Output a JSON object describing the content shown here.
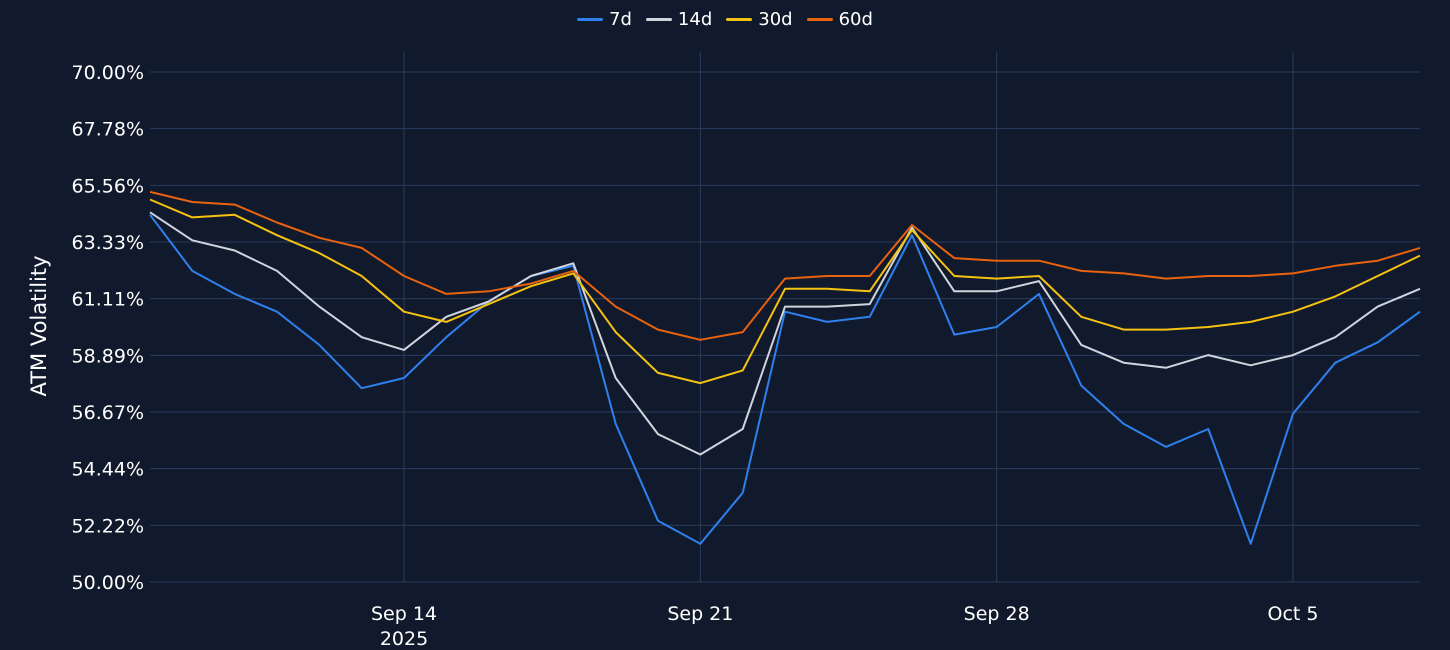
{
  "chart_data": {
    "type": "line",
    "ylabel": "ATM Volatility",
    "y_unit": "%",
    "ylim": [
      50.0,
      70.0
    ],
    "y_ticks": [
      "70.00%",
      "67.78%",
      "65.56%",
      "63.33%",
      "61.11%",
      "58.89%",
      "56.67%",
      "54.44%",
      "52.22%",
      "50.00%"
    ],
    "x_range": [
      "2025-09-08",
      "2025-10-08"
    ],
    "x_ticks": [
      {
        "date": "2025-09-14",
        "label": "Sep 14",
        "sublabel": "2025"
      },
      {
        "date": "2025-09-21",
        "label": "Sep 21",
        "sublabel": ""
      },
      {
        "date": "2025-09-28",
        "label": "Sep 28",
        "sublabel": ""
      },
      {
        "date": "2025-10-05",
        "label": "Oct 5",
        "sublabel": ""
      }
    ],
    "legend_position": "top-center",
    "grid": true,
    "series": [
      {
        "name": "7d",
        "color": "#2f80ed",
        "x": [
          "2025-09-08",
          "2025-09-09",
          "2025-09-10",
          "2025-09-11",
          "2025-09-12",
          "2025-09-13",
          "2025-09-14",
          "2025-09-15",
          "2025-09-16",
          "2025-09-17",
          "2025-09-18",
          "2025-09-19",
          "2025-09-20",
          "2025-09-21",
          "2025-09-22",
          "2025-09-23",
          "2025-09-24",
          "2025-09-25",
          "2025-09-26",
          "2025-09-27",
          "2025-09-28",
          "2025-09-29",
          "2025-09-30",
          "2025-10-01",
          "2025-10-02",
          "2025-10-03",
          "2025-10-04",
          "2025-10-05",
          "2025-10-06",
          "2025-10-07",
          "2025-10-08"
        ],
        "values": [
          64.4,
          62.2,
          61.3,
          60.6,
          59.3,
          57.6,
          58.0,
          59.6,
          61.0,
          62.0,
          62.4,
          56.2,
          52.4,
          51.5,
          53.5,
          60.6,
          60.2,
          60.4,
          63.6,
          59.7,
          60.0,
          61.3,
          57.7,
          56.2,
          55.3,
          56.0,
          51.5,
          56.6,
          58.6,
          59.4,
          60.6
        ]
      },
      {
        "name": "14d",
        "color": "#cfd5dd",
        "x": [
          "2025-09-08",
          "2025-09-09",
          "2025-09-10",
          "2025-09-11",
          "2025-09-12",
          "2025-09-13",
          "2025-09-14",
          "2025-09-15",
          "2025-09-16",
          "2025-09-17",
          "2025-09-18",
          "2025-09-19",
          "2025-09-20",
          "2025-09-21",
          "2025-09-22",
          "2025-09-23",
          "2025-09-24",
          "2025-09-25",
          "2025-09-26",
          "2025-09-27",
          "2025-09-28",
          "2025-09-29",
          "2025-09-30",
          "2025-10-01",
          "2025-10-02",
          "2025-10-03",
          "2025-10-04",
          "2025-10-05",
          "2025-10-06",
          "2025-10-07",
          "2025-10-08"
        ],
        "values": [
          64.5,
          63.4,
          63.0,
          62.2,
          60.8,
          59.6,
          59.1,
          60.4,
          61.0,
          62.0,
          62.5,
          58.0,
          55.8,
          55.0,
          56.0,
          60.8,
          60.8,
          60.9,
          63.9,
          61.4,
          61.4,
          61.8,
          59.3,
          58.6,
          58.4,
          58.9,
          58.5,
          58.9,
          59.6,
          60.8,
          61.5
        ]
      },
      {
        "name": "30d",
        "color": "#f5c211",
        "x": [
          "2025-09-08",
          "2025-09-09",
          "2025-09-10",
          "2025-09-11",
          "2025-09-12",
          "2025-09-13",
          "2025-09-14",
          "2025-09-15",
          "2025-09-16",
          "2025-09-17",
          "2025-09-18",
          "2025-09-19",
          "2025-09-20",
          "2025-09-21",
          "2025-09-22",
          "2025-09-23",
          "2025-09-24",
          "2025-09-25",
          "2025-09-26",
          "2025-09-27",
          "2025-09-28",
          "2025-09-29",
          "2025-09-30",
          "2025-10-01",
          "2025-10-02",
          "2025-10-03",
          "2025-10-04",
          "2025-10-05",
          "2025-10-06",
          "2025-10-07",
          "2025-10-08"
        ],
        "values": [
          65.0,
          64.3,
          64.4,
          63.6,
          62.9,
          62.0,
          60.6,
          60.2,
          60.9,
          61.6,
          62.1,
          59.8,
          58.2,
          57.8,
          58.3,
          61.5,
          61.5,
          61.4,
          63.8,
          62.0,
          61.9,
          62.0,
          60.4,
          59.9,
          59.9,
          60.0,
          60.2,
          60.6,
          61.2,
          62.0,
          62.8
        ]
      },
      {
        "name": "60d",
        "color": "#e8620f",
        "x": [
          "2025-09-08",
          "2025-09-09",
          "2025-09-10",
          "2025-09-11",
          "2025-09-12",
          "2025-09-13",
          "2025-09-14",
          "2025-09-15",
          "2025-09-16",
          "2025-09-17",
          "2025-09-18",
          "2025-09-19",
          "2025-09-20",
          "2025-09-21",
          "2025-09-22",
          "2025-09-23",
          "2025-09-24",
          "2025-09-25",
          "2025-09-26",
          "2025-09-27",
          "2025-09-28",
          "2025-09-29",
          "2025-09-30",
          "2025-10-01",
          "2025-10-02",
          "2025-10-03",
          "2025-10-04",
          "2025-10-05",
          "2025-10-06",
          "2025-10-07",
          "2025-10-08"
        ],
        "values": [
          65.3,
          64.9,
          64.8,
          64.1,
          63.5,
          63.1,
          62.0,
          61.3,
          61.4,
          61.7,
          62.2,
          60.8,
          59.9,
          59.5,
          59.8,
          61.9,
          62.0,
          62.0,
          64.0,
          62.7,
          62.6,
          62.6,
          62.2,
          62.1,
          61.9,
          62.0,
          62.0,
          62.1,
          62.4,
          62.6,
          63.1
        ]
      }
    ]
  }
}
